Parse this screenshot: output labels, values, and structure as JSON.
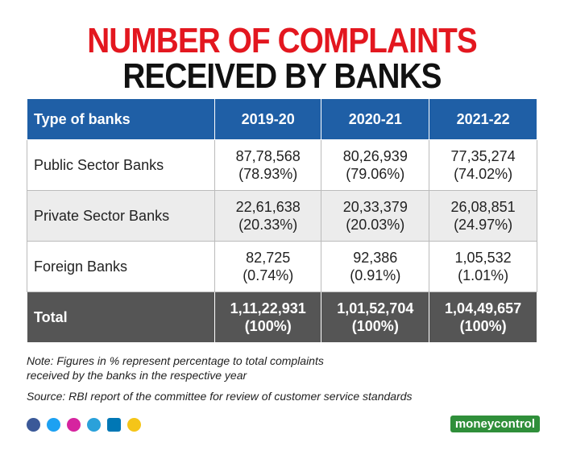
{
  "header": {
    "title_line1": "NUMBER OF COMPLAINTS",
    "title_line2": "RECEIVED BY BANKS"
  },
  "table": {
    "columns": [
      "Type of banks",
      "2019-20",
      "2020-21",
      "2021-22"
    ],
    "rows": [
      [
        "Public Sector Banks",
        [
          "87,78,568",
          "(78.93%)"
        ],
        [
          "80,26,939",
          "(79.06%)"
        ],
        [
          "77,35,274",
          "(74.02%)"
        ]
      ],
      [
        "Private Sector Banks",
        [
          "22,61,638",
          "(20.33%)"
        ],
        [
          "20,33,379",
          "(20.03%)"
        ],
        [
          "26,08,851",
          "(24.97%)"
        ]
      ],
      [
        "Foreign Banks",
        [
          "82,725",
          "(0.74%)"
        ],
        [
          "92,386",
          "(0.91%)"
        ],
        [
          "1,05,532",
          "(1.01%)"
        ]
      ],
      [
        "Total",
        [
          "1,11,22,931",
          "(100%)"
        ],
        [
          "1,01,52,704",
          "(100%)"
        ],
        [
          "1,04,49,657",
          "(100%)"
        ]
      ]
    ]
  },
  "notes": [
    "Note: Figures in % represent percentage to total complaints",
    "received by the banks in the respective year"
  ],
  "source": "Source: RBI report of the committee for review of customer service standards",
  "brand": "moneycontrol"
}
